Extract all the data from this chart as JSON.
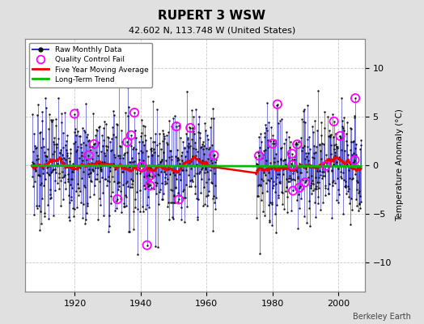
{
  "title": "RUPERT 3 WSW",
  "subtitle": "42.602 N, 113.748 W (United States)",
  "ylabel": "Temperature Anomaly (°C)",
  "credit": "Berkeley Earth",
  "xlim": [
    1905,
    2008
  ],
  "ylim": [
    -13,
    13
  ],
  "yticks": [
    -10,
    -5,
    0,
    5,
    10
  ],
  "xticks": [
    1920,
    1940,
    1960,
    1980,
    2000
  ],
  "year_start": 1907,
  "year_end": 2006,
  "gap_start": 1963,
  "gap_end": 1975,
  "seed": 7,
  "noise_std": 3.0,
  "bar_color": "#3333cc",
  "dot_color": "#111111",
  "ma_color": "#ee0000",
  "trend_color": "#00bb00",
  "qc_color": "#ff00ff",
  "background_color": "#e0e0e0",
  "plot_bg_color": "#ffffff",
  "n_qc": 30
}
